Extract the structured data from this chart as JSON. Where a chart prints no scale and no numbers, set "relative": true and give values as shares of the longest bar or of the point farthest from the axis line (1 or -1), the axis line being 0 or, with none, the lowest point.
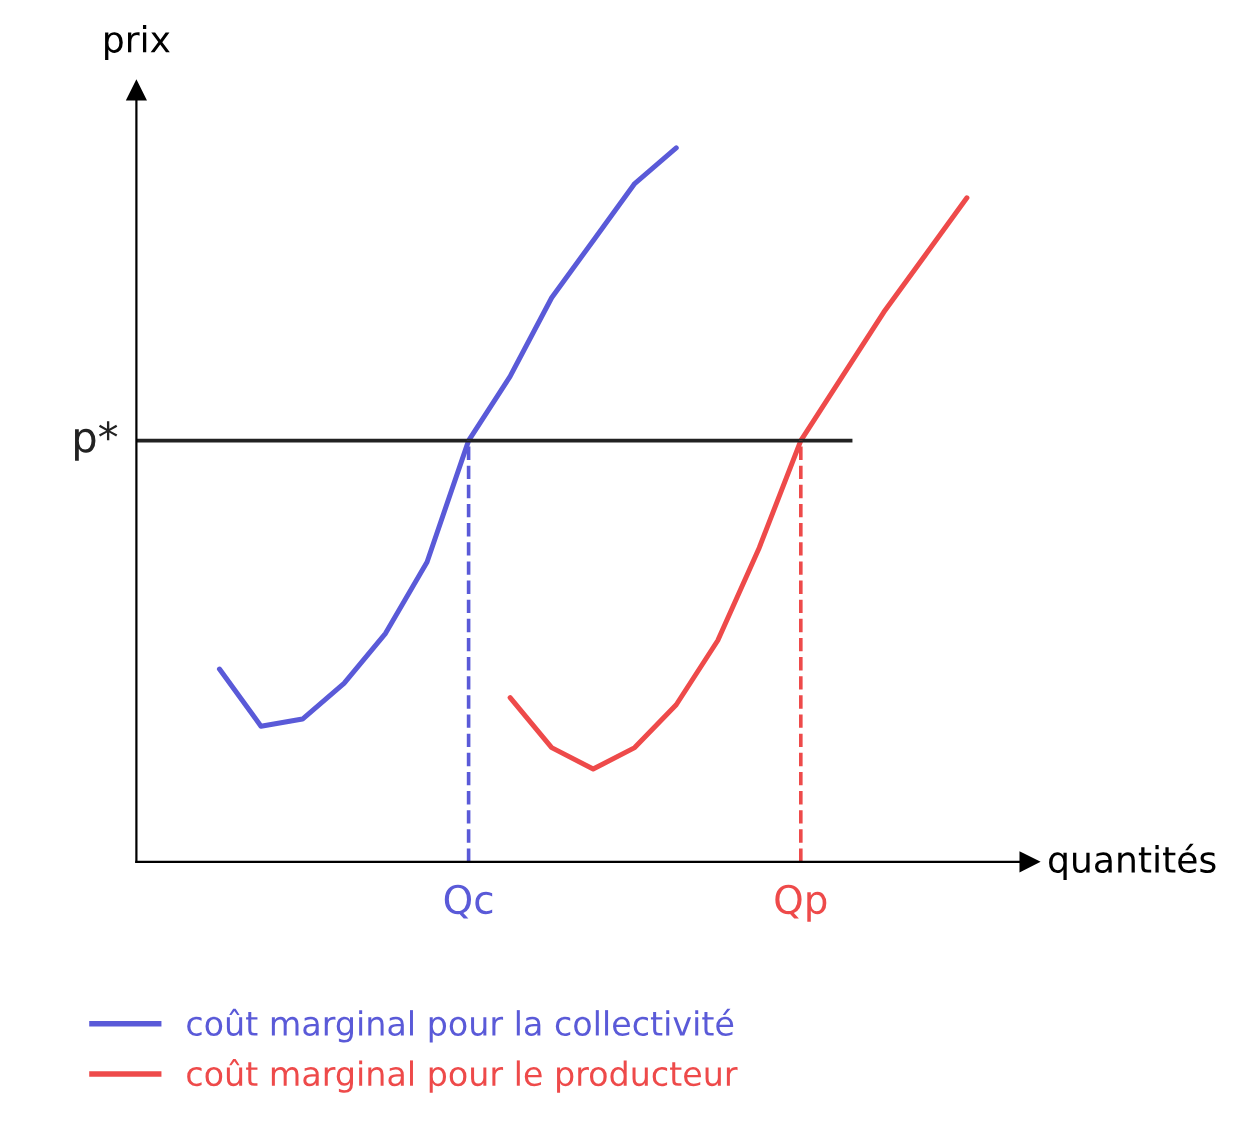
{
  "chart_data": {
    "type": "line",
    "relative": true,
    "xlabel": "quantités",
    "ylabel": "prix",
    "legend": "bottom",
    "marker": "none",
    "line_style": "solid",
    "categories": [
      null,
      null,
      null,
      null,
      null,
      null,
      "Qc",
      null,
      null,
      null,
      null,
      null,
      null,
      null,
      "Qp",
      null,
      null,
      null,
      null
    ],
    "series": [
      {
        "name": "coût marginal pour la collectivité",
        "color": "#5a5ad8",
        "values": [
          0.27,
          0.19,
          0.2,
          0.25,
          0.32,
          0.42,
          0.59,
          0.68,
          0.79,
          0.87,
          0.95,
          1.0,
          null,
          null,
          null,
          null,
          null,
          null,
          null
        ]
      },
      {
        "name": "coût marginal pour le producteur",
        "color": "#ee4a4a",
        "values": [
          null,
          null,
          null,
          null,
          null,
          null,
          null,
          0.23,
          0.16,
          0.13,
          0.16,
          0.22,
          0.31,
          0.44,
          0.59,
          0.68,
          0.77,
          0.85,
          0.93
        ]
      }
    ],
    "ref_lines": [
      {
        "axis": "y",
        "value": 0.59,
        "label": "p*",
        "color": "#222222",
        "line_style": "solid"
      },
      {
        "axis": "x",
        "value": "Qc",
        "color": "#5a5ad8",
        "line_style": "dashed"
      },
      {
        "axis": "x",
        "value": "Qp",
        "color": "#ee4a4a",
        "line_style": "dashed"
      }
    ]
  }
}
